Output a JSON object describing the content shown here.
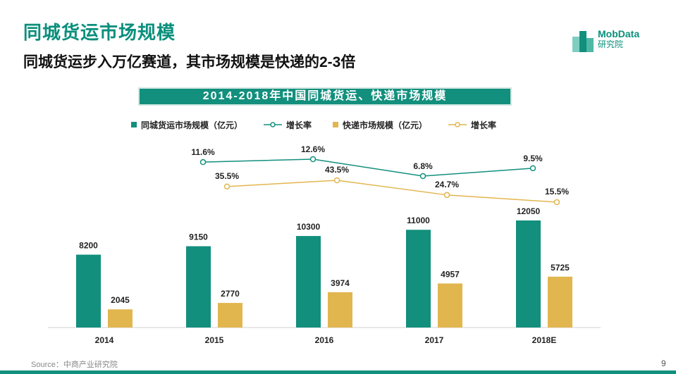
{
  "title": "同城货运市场规模",
  "subtitle": "同城货运步入万亿赛道，其市场规模是快递的2-3倍",
  "logo": {
    "name": "MobData",
    "sub": "研究院"
  },
  "colors": {
    "teal": "#128f7d",
    "gold": "#e2b64f",
    "lineGold": "#e2b64f",
    "lineTeal": "#128f7d"
  },
  "legend": [
    {
      "label": "同城货运市场规模（亿元）",
      "kind": "bar",
      "color": "#128f7d"
    },
    {
      "label": "增长率",
      "kind": "line",
      "color": "#128f7d"
    },
    {
      "label": "快递市场规模（亿元）",
      "kind": "bar",
      "color": "#e2b64f"
    },
    {
      "label": "增长率",
      "kind": "line",
      "color": "#e2b64f"
    }
  ],
  "chart_data": {
    "type": "bar",
    "title": "2014-2018年中国同城货运、快递市场规模",
    "categories": [
      "2014",
      "2015",
      "2016",
      "2017",
      "2018E"
    ],
    "series": [
      {
        "name": "同城货运市场规模（亿元）",
        "values": [
          8200,
          9150,
          10300,
          11000,
          12050
        ],
        "labels": [
          "8200",
          "9150",
          "10300",
          "11000",
          "12050"
        ]
      },
      {
        "name": "快递市场规模（亿元）",
        "values": [
          2045,
          2770,
          3974,
          4957,
          5725
        ],
        "labels": [
          "2045",
          "2770",
          "3974",
          "4957",
          "5725"
        ]
      }
    ],
    "growth": [
      {
        "name": "增长率",
        "of": "同城货运市场规模（亿元）",
        "categories": [
          "2015",
          "2016",
          "2017",
          "2018E"
        ],
        "values": [
          11.6,
          12.6,
          6.8,
          9.5
        ],
        "labels": [
          "11.6%",
          "12.6%",
          "6.8%",
          "9.5%"
        ]
      },
      {
        "name": "增长率",
        "of": "快递市场规模（亿元）",
        "categories": [
          "2015",
          "2016",
          "2017",
          "2018E"
        ],
        "values": [
          35.5,
          43.5,
          24.7,
          15.5
        ],
        "labels": [
          "35.5%",
          "43.5%",
          "24.7%",
          "15.5%"
        ]
      }
    ],
    "xlabel": "",
    "ylabel": "",
    "ylim": [
      0,
      12050
    ]
  },
  "source": "Source：中商产业研究院",
  "page_number": "9"
}
